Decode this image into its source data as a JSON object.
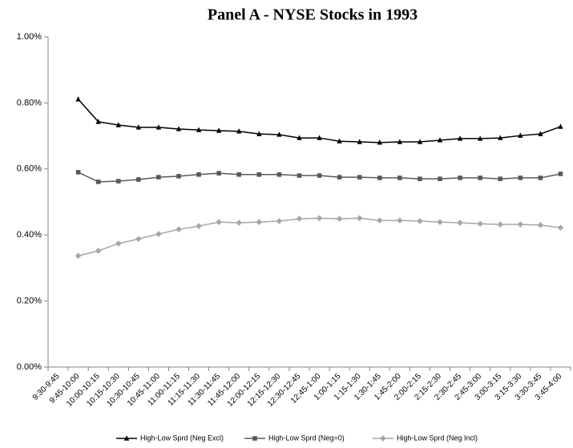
{
  "chart_data": {
    "type": "line",
    "title": "Panel A - NYSE Stocks in 1993",
    "categories": [
      "9:30-9:45",
      "9:45-10:00",
      "10:00-10:15",
      "10:15-10:30",
      "10:30-10:45",
      "10:45-11:00",
      "11:00-11:15",
      "11:15-11:30",
      "11:30-11:45",
      "11:45-12:00",
      "12:00-12:15",
      "12:15-12:30",
      "12:30-12:45",
      "12:45-1:00",
      "1:00-1:15",
      "1:15-1:30",
      "1:30-1:45",
      "1:45-2:00",
      "2:00-2:15",
      "2:15-2:30",
      "2:30-2:45",
      "2:45-3:00",
      "3:00-3:15",
      "3:15-3:30",
      "3:30-3:45",
      "3:45-4:00"
    ],
    "series": [
      {
        "name": "High-Low Sprd (Neg Excl)",
        "color": "#000000",
        "marker": "triangle",
        "values": [
          null,
          0.811,
          0.743,
          0.733,
          0.726,
          0.726,
          0.721,
          0.718,
          0.716,
          0.714,
          0.706,
          0.704,
          0.694,
          0.694,
          0.684,
          0.682,
          0.68,
          0.682,
          0.682,
          0.687,
          0.692,
          0.692,
          0.694,
          0.701,
          0.706,
          0.728
        ]
      },
      {
        "name": "High-Low Sprd (Neg=0)",
        "color": "#595959",
        "marker": "square",
        "values": [
          null,
          0.59,
          0.561,
          0.563,
          0.568,
          0.575,
          0.578,
          0.583,
          0.587,
          0.583,
          0.583,
          0.583,
          0.58,
          0.58,
          0.575,
          0.575,
          0.573,
          0.573,
          0.57,
          0.57,
          0.573,
          0.573,
          0.57,
          0.573,
          0.573,
          0.585
        ]
      },
      {
        "name": "High-Low Sprd (Neg Incl)",
        "color": "#a6a6a6",
        "marker": "diamond",
        "values": [
          null,
          0.337,
          0.352,
          0.374,
          0.388,
          0.403,
          0.417,
          0.427,
          0.439,
          0.437,
          0.439,
          0.442,
          0.449,
          0.451,
          0.449,
          0.451,
          0.444,
          0.444,
          0.442,
          0.439,
          0.437,
          0.434,
          0.432,
          0.432,
          0.43,
          0.422
        ]
      }
    ],
    "ylim": [
      0,
      1
    ],
    "yticks": [
      {
        "value": 0,
        "label": "0.00%"
      },
      {
        "value": 0.2,
        "label": "0.20%"
      },
      {
        "value": 0.4,
        "label": "0.40%"
      },
      {
        "value": 0.6,
        "label": "0.60%"
      },
      {
        "value": 0.8,
        "label": "0.80%"
      },
      {
        "value": 1,
        "label": "1.00%"
      }
    ],
    "grid": false,
    "legend": "bottom"
  }
}
